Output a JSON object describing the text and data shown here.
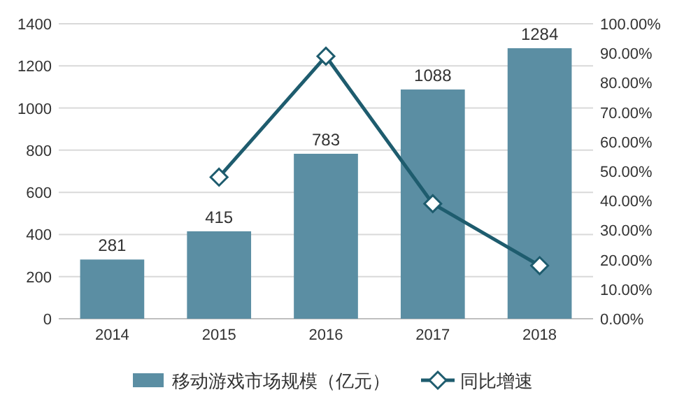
{
  "chart_data": {
    "type": "bar",
    "categories": [
      "2014",
      "2015",
      "2016",
      "2017",
      "2018"
    ],
    "series": [
      {
        "name": "移动游戏市场规模（亿元）",
        "color": "#5b8ea3",
        "values": [
          281,
          415,
          783,
          1088,
          1284
        ],
        "value_labels": [
          "281",
          "415",
          "783",
          "1088",
          "1284"
        ]
      },
      {
        "name": "同比增速",
        "type": "line",
        "axis": "y2",
        "color": "#1e5c6e",
        "values": [
          null,
          48,
          89,
          39,
          18
        ]
      }
    ],
    "ylim": [
      0,
      1400
    ],
    "yticks": [
      0,
      200,
      400,
      600,
      800,
      1000,
      1200,
      1400
    ],
    "y2lim": [
      0,
      100
    ],
    "y2ticks": [
      {
        "value": 0,
        "label": "0.00%"
      },
      {
        "value": 10,
        "label": "10.00%"
      },
      {
        "value": 20,
        "label": "20.00%"
      },
      {
        "value": 30,
        "label": "30.00%"
      },
      {
        "value": 40,
        "label": "40.00%"
      },
      {
        "value": 50,
        "label": "50.00%"
      },
      {
        "value": 60,
        "label": "60.00%"
      },
      {
        "value": 70,
        "label": "70.00%"
      },
      {
        "value": 80,
        "label": "80.00%"
      },
      {
        "value": 90,
        "label": "90.00%"
      },
      {
        "value": 100,
        "label": "100.00%"
      }
    ],
    "grid": "y",
    "legend": "bottom",
    "marker": "diamond"
  }
}
